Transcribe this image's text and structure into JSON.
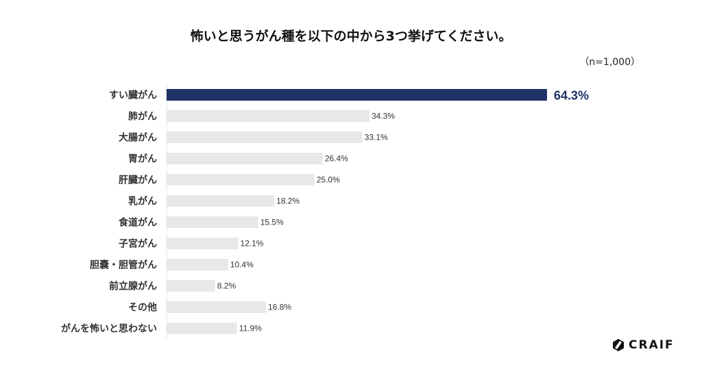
{
  "chart_data": {
    "type": "bar",
    "orientation": "horizontal",
    "title": "怖いと思うがん種を以下の中から3つ挙げてください。",
    "note": "（n=1,000）",
    "categories": [
      "すい臓がん",
      "肺がん",
      "大腸がん",
      "胃がん",
      "肝臓がん",
      "乳がん",
      "食道がん",
      "子宮がん",
      "胆嚢・胆管がん",
      "前立腺がん",
      "その他",
      "がんを怖いと思わない"
    ],
    "values": [
      64.3,
      34.3,
      33.1,
      26.4,
      25.0,
      18.2,
      15.5,
      12.1,
      10.4,
      8.2,
      16.8,
      11.9
    ],
    "value_labels": [
      "64.3%",
      "34.3%",
      "33.1%",
      "26.4%",
      "25.0%",
      "18.2%",
      "15.5%",
      "12.1%",
      "10.4%",
      "8.2%",
      "16.8%",
      "11.9%"
    ],
    "unit": "%",
    "highlight_index": 0,
    "colors": {
      "highlight": "#1e3264",
      "default": "#e8e8e8",
      "axis": "#e6e6e6"
    },
    "grid": false,
    "legend": "none"
  },
  "logo": {
    "text": "CRAIF"
  }
}
